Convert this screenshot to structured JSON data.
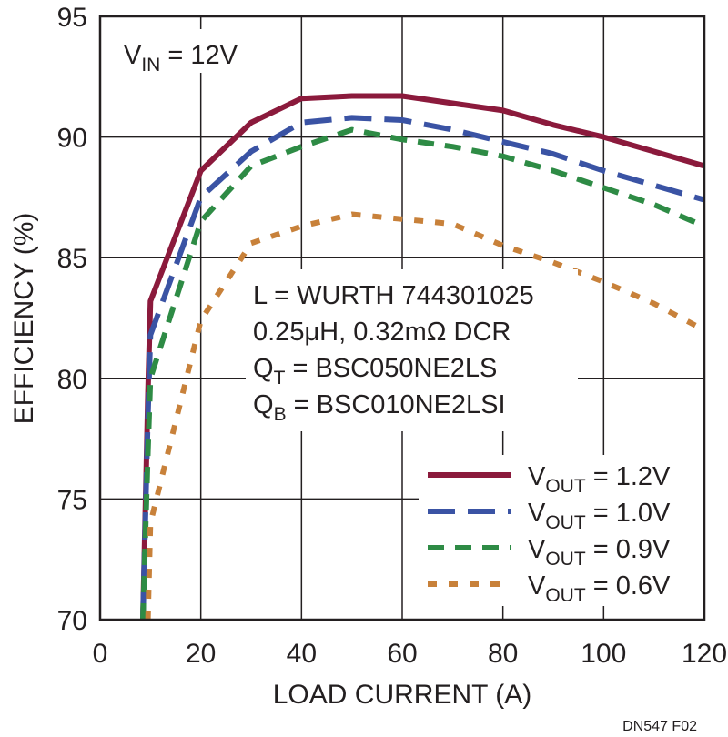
{
  "chart_data": {
    "type": "line",
    "xlabel": "LOAD CURRENT (A)",
    "ylabel": "EFFICIENCY (%)",
    "xlim": [
      0,
      120
    ],
    "ylim": [
      70,
      95
    ],
    "x_ticks": [
      "0",
      "20",
      "40",
      "60",
      "80",
      "100",
      "120"
    ],
    "y_ticks": [
      "70",
      "75",
      "80",
      "85",
      "90",
      "95"
    ],
    "grid": true,
    "legend_placement": "bottom-right",
    "annotations": {
      "vin": {
        "main": "V",
        "sub": "IN",
        "rest": " = 12V"
      },
      "inductor": "L = WURTH 744301025",
      "dcr": "0.25μH, 0.32mΩ DCR",
      "qt": {
        "main": "Q",
        "sub": "T",
        "rest": " = BSC050NE2LS"
      },
      "qb": {
        "main": "Q",
        "sub": "B",
        "rest": " = BSC010NE2LSI"
      }
    },
    "figure_id": "DN547 F02",
    "series": [
      {
        "label": {
          "main": "V",
          "sub": "OUT",
          "rest": " = 1.2V"
        },
        "color": "#8b1a3c",
        "style": "solid",
        "x": [
          8.5,
          9.5,
          10,
          20,
          30,
          40,
          50,
          60,
          70,
          80,
          90,
          100,
          110,
          120
        ],
        "y": [
          70,
          79.5,
          83.2,
          88.6,
          90.6,
          91.6,
          91.7,
          91.7,
          91.4,
          91.1,
          90.5,
          90.0,
          89.4,
          88.8
        ]
      },
      {
        "label": {
          "main": "V",
          "sub": "OUT",
          "rest": " = 1.0V"
        },
        "color": "#3a53a4",
        "style": "long-dash",
        "x": [
          8.5,
          9.5,
          10,
          20,
          30,
          40,
          50,
          60,
          70,
          80,
          90,
          100,
          110,
          120
        ],
        "y": [
          70,
          78.5,
          81.8,
          87.5,
          89.4,
          90.6,
          90.8,
          90.7,
          90.3,
          89.8,
          89.3,
          88.6,
          88.0,
          87.4
        ]
      },
      {
        "label": {
          "main": "V",
          "sub": "OUT",
          "rest": " = 0.9V"
        },
        "color": "#2e8b45",
        "style": "dash",
        "x": [
          8.5,
          9.5,
          10,
          20,
          30,
          40,
          50,
          60,
          70,
          80,
          90,
          100,
          110,
          120
        ],
        "y": [
          70,
          77,
          80,
          86.5,
          88.8,
          89.6,
          90.3,
          89.9,
          89.6,
          89.2,
          88.6,
          87.9,
          87.2,
          86.3
        ]
      },
      {
        "label": {
          "main": "V",
          "sub": "OUT",
          "rest": " = 0.6V"
        },
        "color": "#c8813a",
        "style": "dotted",
        "x": [
          9.5,
          10,
          20,
          30,
          40,
          50,
          60,
          70,
          80,
          90,
          100,
          110,
          120
        ],
        "y": [
          70,
          74,
          82.4,
          85.6,
          86.3,
          86.8,
          86.6,
          86.4,
          85.5,
          84.8,
          84.0,
          83.1,
          82.0
        ]
      }
    ]
  }
}
